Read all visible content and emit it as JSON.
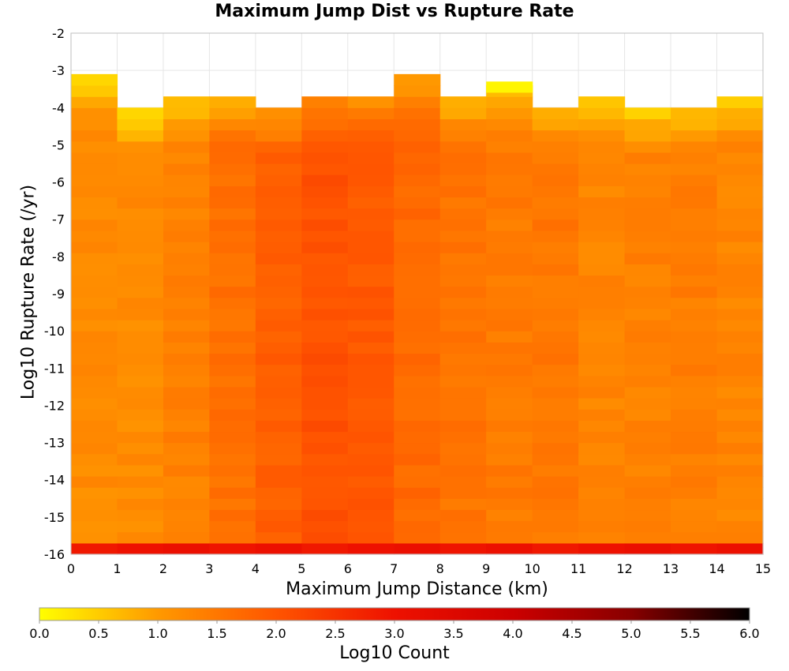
{
  "chart_data": {
    "type": "heatmap",
    "title": "Maximum Jump Dist vs Rupture Rate",
    "xlabel": "Maximum Jump Distance (km)",
    "ylabel": "Log10 Rupture Rate (/yr)",
    "xlim": [
      0,
      15
    ],
    "ylim": [
      -16,
      -2
    ],
    "x_ticks": [
      "0",
      "1",
      "2",
      "3",
      "4",
      "5",
      "6",
      "7",
      "8",
      "9",
      "10",
      "11",
      "12",
      "13",
      "14",
      "15"
    ],
    "y_ticks": [
      "-2",
      "-3",
      "-4",
      "-5",
      "-6",
      "-7",
      "-8",
      "-9",
      "-10",
      "-11",
      "-12",
      "-13",
      "-14",
      "-15",
      "-16"
    ],
    "x_bin_width": 1,
    "y_bin_height": 0.3,
    "grid": true,
    "colorbar": {
      "label": "Log10 Count",
      "range": [
        0,
        6
      ],
      "ticks": [
        "0.0",
        "0.5",
        "1.0",
        "1.5",
        "2.0",
        "2.5",
        "3.0",
        "3.5",
        "4.0",
        "4.5",
        "5.0",
        "5.5",
        "6.0"
      ],
      "colors": [
        "#ffff00",
        "#ff9900",
        "#ff5500",
        "#ee1100",
        "#cc0000",
        "#880000",
        "#000000"
      ]
    },
    "column_tops": [
      -3.0,
      -3.9,
      -3.6,
      -3.6,
      -3.9,
      -3.6,
      -3.6,
      -3.0,
      -3.6,
      -3.3,
      -3.9,
      -3.6,
      -3.9,
      -3.9,
      -3.6
    ],
    "column_base_values": [
      1.2,
      1.2,
      1.35,
      1.6,
      1.85,
      2.05,
      1.95,
      1.7,
      1.55,
      1.45,
      1.5,
      1.3,
      1.35,
      1.4,
      1.3
    ],
    "column_min_row_value": 2.9,
    "detached_cells": [
      {
        "x": 9,
        "y_low": -3.6,
        "y_high": -3.3,
        "value": 0.1
      }
    ]
  }
}
